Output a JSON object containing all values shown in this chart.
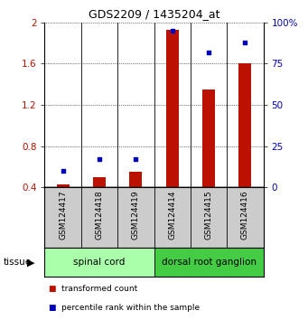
{
  "title": "GDS2209 / 1435204_at",
  "samples": [
    "GSM124417",
    "GSM124418",
    "GSM124419",
    "GSM124414",
    "GSM124415",
    "GSM124416"
  ],
  "transformed_count": [
    0.43,
    0.5,
    0.55,
    1.93,
    1.35,
    1.6
  ],
  "percentile_rank": [
    10,
    17,
    17,
    95,
    82,
    88
  ],
  "tissue_groups": [
    {
      "label": "spinal cord",
      "indices": [
        0,
        1,
        2
      ],
      "color": "#aaffaa"
    },
    {
      "label": "dorsal root ganglion",
      "indices": [
        3,
        4,
        5
      ],
      "color": "#44cc44"
    }
  ],
  "bar_color": "#bb1100",
  "scatter_color": "#0000bb",
  "ylim_left": [
    0.4,
    2.0
  ],
  "ylim_right": [
    0,
    100
  ],
  "yticks_left": [
    0.4,
    0.8,
    1.2,
    1.6,
    2.0
  ],
  "ytick_labels_left": [
    "0.4",
    "0.8",
    "1.2",
    "1.6",
    "2"
  ],
  "yticks_right": [
    0,
    25,
    50,
    75,
    100
  ],
  "ytick_labels_right": [
    "0",
    "25",
    "50",
    "75",
    "100%"
  ],
  "bar_bottom": 0.4,
  "bar_width": 0.35,
  "grid_color": "#000000",
  "background_color": "#ffffff",
  "sample_label_bg": "#cccccc",
  "tissue_label": "tissue",
  "legend_entries": [
    "transformed count",
    "percentile rank within the sample"
  ],
  "legend_colors": [
    "#bb1100",
    "#0000bb"
  ]
}
